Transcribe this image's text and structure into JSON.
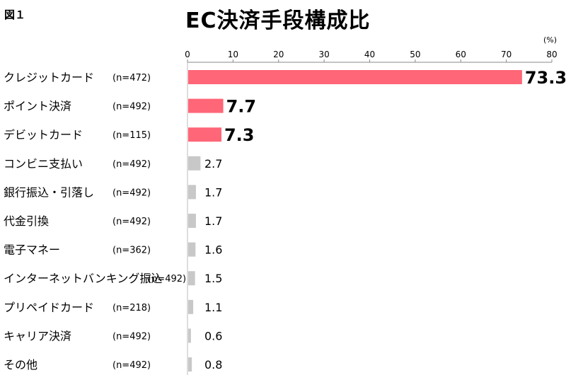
{
  "figure_label": "図１",
  "title": "EC決済手段構成比",
  "unit": "(%)",
  "chart_data": {
    "type": "bar",
    "orientation": "horizontal",
    "title": "EC決済手段構成比",
    "xlim": [
      0,
      80
    ],
    "xticks": [
      0,
      10,
      20,
      30,
      40,
      50,
      60,
      70,
      80
    ],
    "unit": "(%)",
    "grid": false,
    "categories": [
      "クレジットカード",
      "ポイント決済",
      "デビットカード",
      "コンビニ支払い",
      "銀行振込・引落し",
      "代金引換",
      "電子マネー",
      "インターネットバンキング振込",
      "プリペイドカード",
      "キャリア決済",
      "その他"
    ],
    "sample_sizes": [
      "(n=472)",
      "(n=492)",
      "(n=115)",
      "(n=492)",
      "(n=492)",
      "(n=492)",
      "(n=362)",
      "(n=492)",
      "(n=218)",
      "(n=492)",
      "(n=492)"
    ],
    "values": [
      73.3,
      7.7,
      7.3,
      2.7,
      1.7,
      1.7,
      1.6,
      1.5,
      1.1,
      0.6,
      0.8
    ],
    "value_labels": [
      "73.3",
      "7.7",
      "7.3",
      "2.7",
      "1.7",
      "1.7",
      "1.6",
      "1.5",
      "1.1",
      "0.6",
      "0.8"
    ],
    "highlight_color": "#ff6677",
    "default_color": "#c8c8c8",
    "highlighted_count": 3
  }
}
